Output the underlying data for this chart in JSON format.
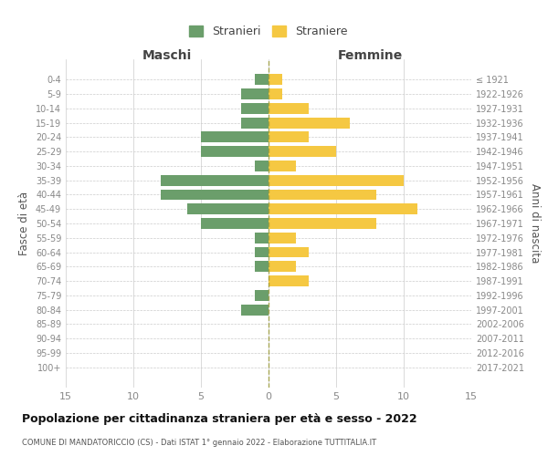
{
  "age_groups": [
    "0-4",
    "5-9",
    "10-14",
    "15-19",
    "20-24",
    "25-29",
    "30-34",
    "35-39",
    "40-44",
    "45-49",
    "50-54",
    "55-59",
    "60-64",
    "65-69",
    "70-74",
    "75-79",
    "80-84",
    "85-89",
    "90-94",
    "95-99",
    "100+"
  ],
  "birth_years": [
    "2017-2021",
    "2012-2016",
    "2007-2011",
    "2002-2006",
    "1997-2001",
    "1992-1996",
    "1987-1991",
    "1982-1986",
    "1977-1981",
    "1972-1976",
    "1967-1971",
    "1962-1966",
    "1957-1961",
    "1952-1956",
    "1947-1951",
    "1942-1946",
    "1937-1941",
    "1932-1936",
    "1927-1931",
    "1922-1926",
    "≤ 1921"
  ],
  "maschi": [
    1,
    2,
    2,
    2,
    5,
    5,
    1,
    8,
    8,
    6,
    5,
    1,
    1,
    1,
    0,
    1,
    2,
    0,
    0,
    0,
    0
  ],
  "femmine": [
    1,
    1,
    3,
    6,
    3,
    5,
    2,
    10,
    8,
    11,
    8,
    2,
    3,
    2,
    3,
    0,
    0,
    0,
    0,
    0,
    0
  ],
  "color_maschi": "#6b9e6b",
  "color_femmine": "#f5c842",
  "title": "Popolazione per cittadinanza straniera per età e sesso - 2022",
  "subtitle": "COMUNE DI MANDATORICCIO (CS) - Dati ISTAT 1° gennaio 2022 - Elaborazione TUTTITALIA.IT",
  "ylabel_left": "Fasce di età",
  "ylabel_right": "Anni di nascita",
  "xlabel_maschi": "Maschi",
  "xlabel_femmine": "Femmine",
  "xlim": 15,
  "legend_stranieri": "Stranieri",
  "legend_straniere": "Straniere",
  "bg_color": "#ffffff",
  "grid_color": "#cccccc",
  "axis_label_color": "#555555",
  "tick_color": "#888888"
}
